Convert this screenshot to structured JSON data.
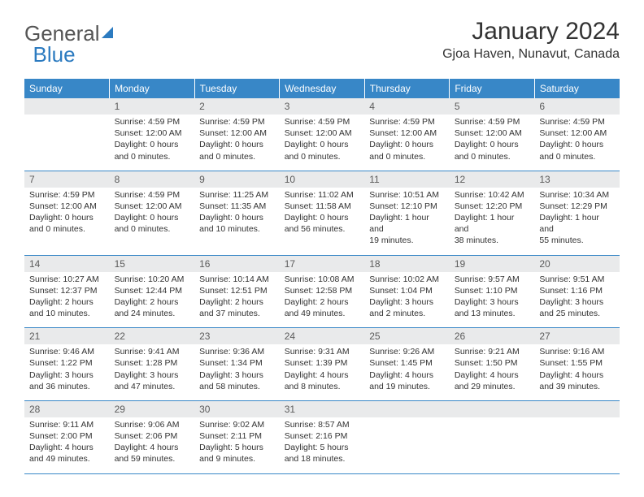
{
  "logo": {
    "part1": "General",
    "part2": "Blue"
  },
  "title": "January 2024",
  "location": "Gjoa Haven, Nunavut, Canada",
  "colors": {
    "header_bg": "#3887c7",
    "header_text": "#ffffff",
    "daynum_bg": "#e9eaeb",
    "daynum_text": "#5b5b5b",
    "body_text": "#333333",
    "divider": "#3887c7"
  },
  "dayHeaders": [
    "Sunday",
    "Monday",
    "Tuesday",
    "Wednesday",
    "Thursday",
    "Friday",
    "Saturday"
  ],
  "weeks": [
    [
      {
        "n": "",
        "lines": []
      },
      {
        "n": "1",
        "lines": [
          "Sunrise: 4:59 PM",
          "Sunset: 12:00 AM",
          "Daylight: 0 hours",
          "and 0 minutes."
        ]
      },
      {
        "n": "2",
        "lines": [
          "Sunrise: 4:59 PM",
          "Sunset: 12:00 AM",
          "Daylight: 0 hours",
          "and 0 minutes."
        ]
      },
      {
        "n": "3",
        "lines": [
          "Sunrise: 4:59 PM",
          "Sunset: 12:00 AM",
          "Daylight: 0 hours",
          "and 0 minutes."
        ]
      },
      {
        "n": "4",
        "lines": [
          "Sunrise: 4:59 PM",
          "Sunset: 12:00 AM",
          "Daylight: 0 hours",
          "and 0 minutes."
        ]
      },
      {
        "n": "5",
        "lines": [
          "Sunrise: 4:59 PM",
          "Sunset: 12:00 AM",
          "Daylight: 0 hours",
          "and 0 minutes."
        ]
      },
      {
        "n": "6",
        "lines": [
          "Sunrise: 4:59 PM",
          "Sunset: 12:00 AM",
          "Daylight: 0 hours",
          "and 0 minutes."
        ]
      }
    ],
    [
      {
        "n": "7",
        "lines": [
          "Sunrise: 4:59 PM",
          "Sunset: 12:00 AM",
          "Daylight: 0 hours",
          "and 0 minutes."
        ]
      },
      {
        "n": "8",
        "lines": [
          "Sunrise: 4:59 PM",
          "Sunset: 12:00 AM",
          "Daylight: 0 hours",
          "and 0 minutes."
        ]
      },
      {
        "n": "9",
        "lines": [
          "Sunrise: 11:25 AM",
          "Sunset: 11:35 AM",
          "Daylight: 0 hours",
          "and 10 minutes."
        ]
      },
      {
        "n": "10",
        "lines": [
          "Sunrise: 11:02 AM",
          "Sunset: 11:58 AM",
          "Daylight: 0 hours",
          "and 56 minutes."
        ]
      },
      {
        "n": "11",
        "lines": [
          "Sunrise: 10:51 AM",
          "Sunset: 12:10 PM",
          "Daylight: 1 hour and",
          "19 minutes."
        ]
      },
      {
        "n": "12",
        "lines": [
          "Sunrise: 10:42 AM",
          "Sunset: 12:20 PM",
          "Daylight: 1 hour and",
          "38 minutes."
        ]
      },
      {
        "n": "13",
        "lines": [
          "Sunrise: 10:34 AM",
          "Sunset: 12:29 PM",
          "Daylight: 1 hour and",
          "55 minutes."
        ]
      }
    ],
    [
      {
        "n": "14",
        "lines": [
          "Sunrise: 10:27 AM",
          "Sunset: 12:37 PM",
          "Daylight: 2 hours",
          "and 10 minutes."
        ]
      },
      {
        "n": "15",
        "lines": [
          "Sunrise: 10:20 AM",
          "Sunset: 12:44 PM",
          "Daylight: 2 hours",
          "and 24 minutes."
        ]
      },
      {
        "n": "16",
        "lines": [
          "Sunrise: 10:14 AM",
          "Sunset: 12:51 PM",
          "Daylight: 2 hours",
          "and 37 minutes."
        ]
      },
      {
        "n": "17",
        "lines": [
          "Sunrise: 10:08 AM",
          "Sunset: 12:58 PM",
          "Daylight: 2 hours",
          "and 49 minutes."
        ]
      },
      {
        "n": "18",
        "lines": [
          "Sunrise: 10:02 AM",
          "Sunset: 1:04 PM",
          "Daylight: 3 hours",
          "and 2 minutes."
        ]
      },
      {
        "n": "19",
        "lines": [
          "Sunrise: 9:57 AM",
          "Sunset: 1:10 PM",
          "Daylight: 3 hours",
          "and 13 minutes."
        ]
      },
      {
        "n": "20",
        "lines": [
          "Sunrise: 9:51 AM",
          "Sunset: 1:16 PM",
          "Daylight: 3 hours",
          "and 25 minutes."
        ]
      }
    ],
    [
      {
        "n": "21",
        "lines": [
          "Sunrise: 9:46 AM",
          "Sunset: 1:22 PM",
          "Daylight: 3 hours",
          "and 36 minutes."
        ]
      },
      {
        "n": "22",
        "lines": [
          "Sunrise: 9:41 AM",
          "Sunset: 1:28 PM",
          "Daylight: 3 hours",
          "and 47 minutes."
        ]
      },
      {
        "n": "23",
        "lines": [
          "Sunrise: 9:36 AM",
          "Sunset: 1:34 PM",
          "Daylight: 3 hours",
          "and 58 minutes."
        ]
      },
      {
        "n": "24",
        "lines": [
          "Sunrise: 9:31 AM",
          "Sunset: 1:39 PM",
          "Daylight: 4 hours",
          "and 8 minutes."
        ]
      },
      {
        "n": "25",
        "lines": [
          "Sunrise: 9:26 AM",
          "Sunset: 1:45 PM",
          "Daylight: 4 hours",
          "and 19 minutes."
        ]
      },
      {
        "n": "26",
        "lines": [
          "Sunrise: 9:21 AM",
          "Sunset: 1:50 PM",
          "Daylight: 4 hours",
          "and 29 minutes."
        ]
      },
      {
        "n": "27",
        "lines": [
          "Sunrise: 9:16 AM",
          "Sunset: 1:55 PM",
          "Daylight: 4 hours",
          "and 39 minutes."
        ]
      }
    ],
    [
      {
        "n": "28",
        "lines": [
          "Sunrise: 9:11 AM",
          "Sunset: 2:00 PM",
          "Daylight: 4 hours",
          "and 49 minutes."
        ]
      },
      {
        "n": "29",
        "lines": [
          "Sunrise: 9:06 AM",
          "Sunset: 2:06 PM",
          "Daylight: 4 hours",
          "and 59 minutes."
        ]
      },
      {
        "n": "30",
        "lines": [
          "Sunrise: 9:02 AM",
          "Sunset: 2:11 PM",
          "Daylight: 5 hours",
          "and 9 minutes."
        ]
      },
      {
        "n": "31",
        "lines": [
          "Sunrise: 8:57 AM",
          "Sunset: 2:16 PM",
          "Daylight: 5 hours",
          "and 18 minutes."
        ]
      },
      {
        "n": "",
        "lines": []
      },
      {
        "n": "",
        "lines": []
      },
      {
        "n": "",
        "lines": []
      }
    ]
  ]
}
